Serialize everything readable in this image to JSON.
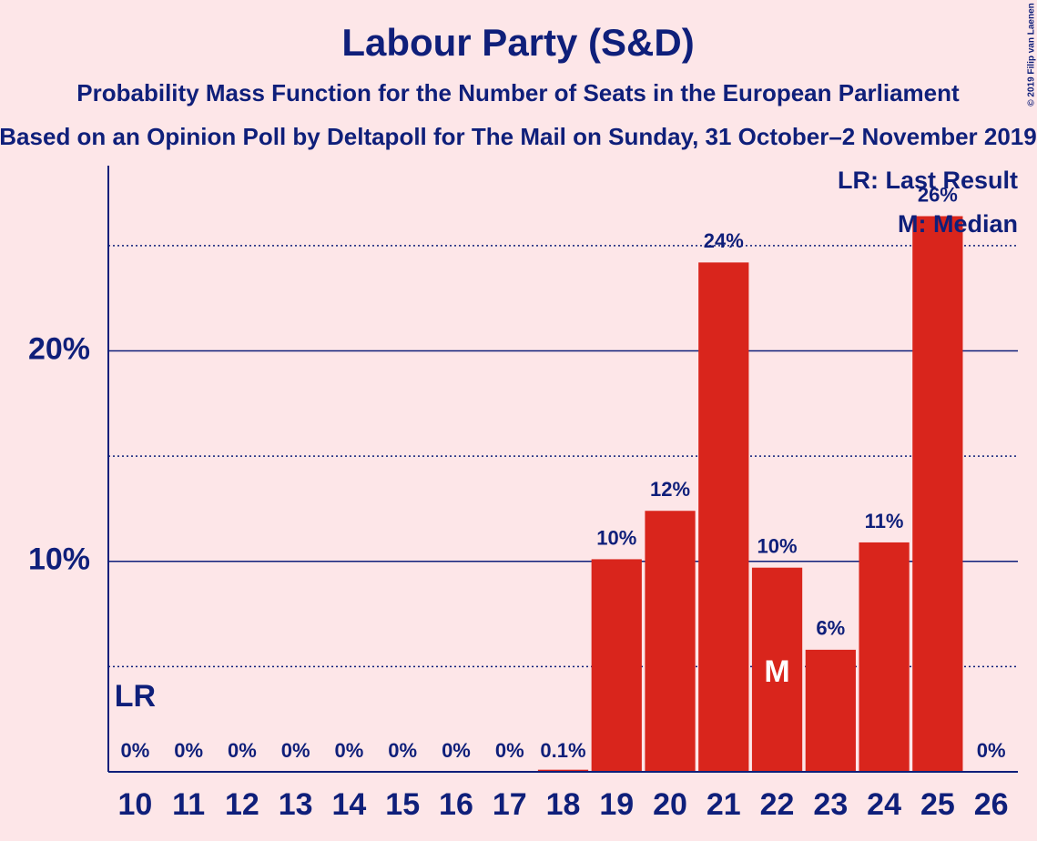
{
  "chart_data": {
    "type": "bar",
    "title": "Labour Party (S&D)",
    "subtitle": "Probability Mass Function for the Number of Seats in the European Parliament",
    "subtitle2": "Based on an Opinion Poll by Deltapoll for The Mail on Sunday, 31 October–2 November 2019",
    "copyright": "© 2019 Filip van Laenen",
    "categories": [
      "10",
      "11",
      "12",
      "13",
      "14",
      "15",
      "16",
      "17",
      "18",
      "19",
      "20",
      "21",
      "22",
      "23",
      "24",
      "25",
      "26"
    ],
    "values": [
      0,
      0,
      0,
      0,
      0,
      0,
      0,
      0,
      0.1,
      10.1,
      12.4,
      24.2,
      9.7,
      5.8,
      10.9,
      26.4,
      0
    ],
    "value_labels": [
      "0%",
      "0%",
      "0%",
      "0%",
      "0%",
      "0%",
      "0%",
      "0%",
      "0.1%",
      "10%",
      "12%",
      "24%",
      "10%",
      "6%",
      "11%",
      "26%",
      "0%"
    ],
    "color": "#d9251c",
    "ylim": [
      0,
      28.8
    ],
    "yticks": [
      {
        "value": 10,
        "label": "10%"
      },
      {
        "value": 20,
        "label": "20%"
      }
    ],
    "minor_yticks": [
      5,
      15,
      25
    ],
    "grid": true,
    "markers": [
      {
        "label": "LR",
        "category": "10"
      },
      {
        "label": "M",
        "category": "22"
      }
    ],
    "legend": [
      "LR: Last Result",
      "M: Median"
    ]
  }
}
